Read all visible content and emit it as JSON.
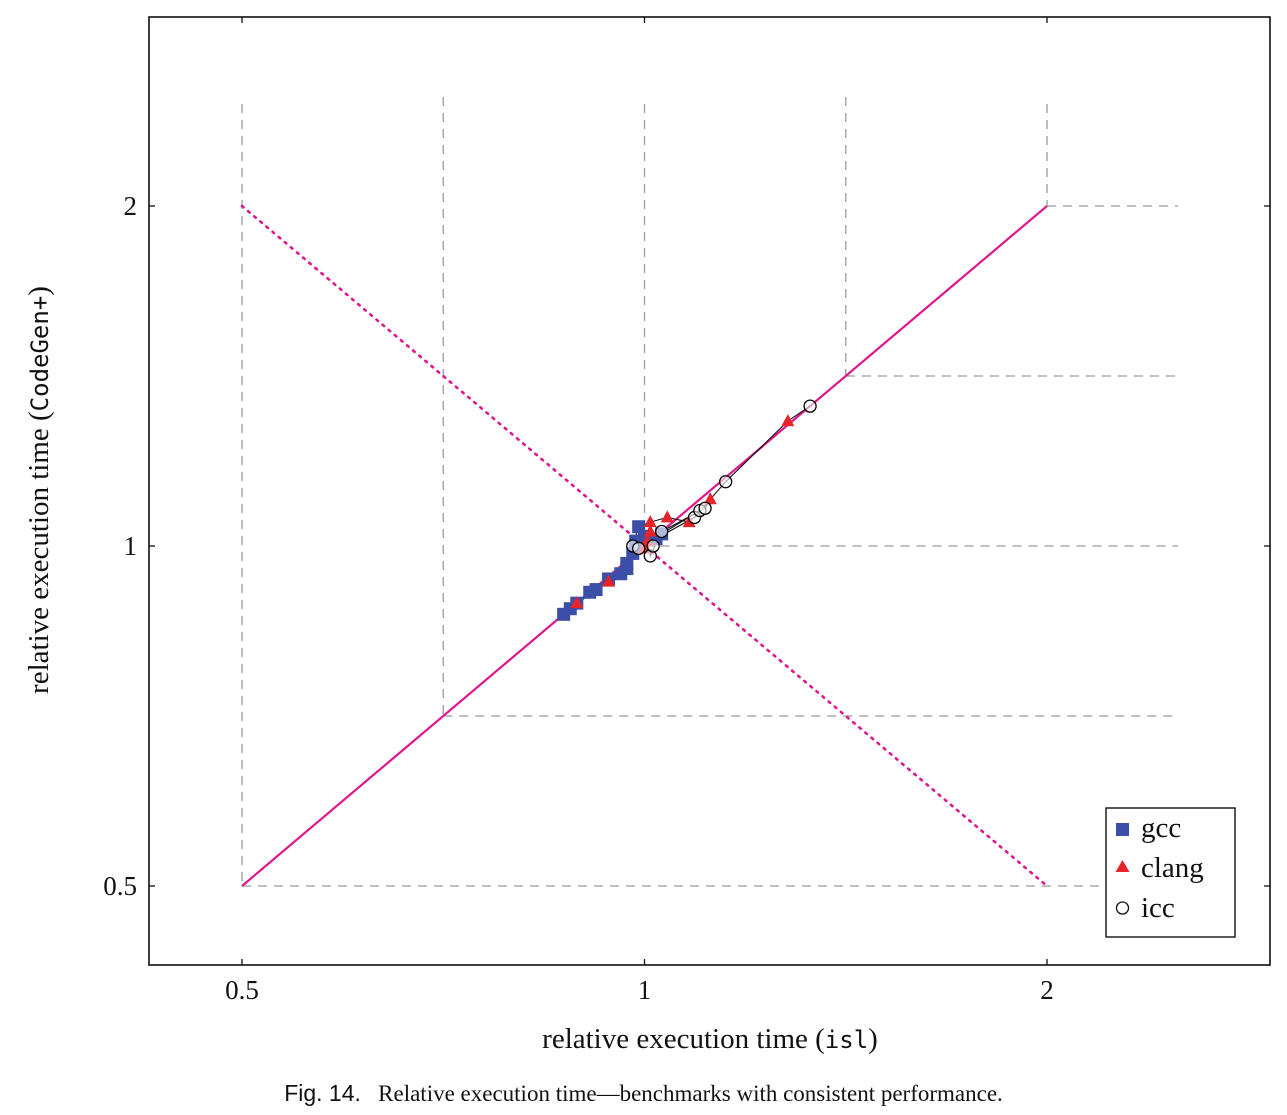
{
  "chart_data": {
    "type": "scatter",
    "xlabel_prefix": "relative execution time (",
    "xlabel_code": "isl",
    "xlabel_suffix": ")",
    "ylabel_prefix": "relative execution time (",
    "ylabel_code": "CodeGen+",
    "ylabel_suffix": ")",
    "scale": "log2",
    "xlim": [
      0.4,
      2.55
    ],
    "ylim": [
      0.42,
      2.55
    ],
    "x_ticks": [
      0.5,
      1,
      2
    ],
    "x_tick_labels": [
      "0.5",
      "1",
      "2"
    ],
    "y_ticks": [
      0.5,
      1,
      2
    ],
    "y_tick_labels": [
      "0.5",
      "1",
      "2"
    ],
    "grid": "dashed reference lines",
    "legend_position": "bottom-right",
    "reference_lines": [
      {
        "kind": "diagonal",
        "style": "solid",
        "color": "#e0168c",
        "from": [
          0.5,
          0.5
        ],
        "to": [
          2,
          2
        ]
      },
      {
        "kind": "anti-diagonal",
        "style": "dotted",
        "color": "#e0168c",
        "from": [
          0.5,
          2
        ],
        "to": [
          2,
          0.5
        ]
      }
    ],
    "series": [
      {
        "name": "gcc",
        "marker": "square",
        "color": "#3b4fa8",
        "points": [
          [
            0.87,
            0.87
          ],
          [
            0.88,
            0.88
          ],
          [
            0.89,
            0.89
          ],
          [
            0.91,
            0.91
          ],
          [
            0.92,
            0.915
          ],
          [
            0.94,
            0.935
          ],
          [
            0.96,
            0.945
          ],
          [
            0.97,
            0.955
          ],
          [
            0.97,
            0.965
          ],
          [
            0.98,
            0.985
          ],
          [
            0.985,
            1.0
          ],
          [
            0.985,
            1.01
          ],
          [
            0.99,
            1.04
          ],
          [
            1.0,
            1.02
          ],
          [
            1.02,
            1.015
          ],
          [
            1.03,
            1.025
          ]
        ]
      },
      {
        "name": "clang",
        "marker": "triangle",
        "color": "#e8232a",
        "points": [
          [
            0.89,
            0.89
          ],
          [
            0.94,
            0.93
          ],
          [
            1.0,
            0.995
          ],
          [
            1.005,
            1.01
          ],
          [
            1.01,
            1.03
          ],
          [
            1.01,
            1.05
          ],
          [
            1.04,
            1.06
          ],
          [
            1.08,
            1.05
          ],
          [
            1.12,
            1.1
          ],
          [
            1.28,
            1.29
          ]
        ]
      },
      {
        "name": "icc",
        "marker": "circle",
        "color": "#000000",
        "points": [
          [
            0.98,
            1.0
          ],
          [
            0.99,
            0.995
          ],
          [
            1.01,
            0.98
          ],
          [
            1.015,
            1.0
          ],
          [
            1.03,
            1.03
          ],
          [
            1.09,
            1.06
          ],
          [
            1.1,
            1.075
          ],
          [
            1.11,
            1.08
          ],
          [
            1.15,
            1.14
          ],
          [
            1.33,
            1.33
          ]
        ]
      }
    ],
    "connector_lines": [
      [
        [
          0.87,
          0.87
        ],
        [
          0.91,
          0.91
        ],
        [
          0.94,
          0.935
        ],
        [
          0.97,
          0.955
        ],
        [
          0.985,
          1.0
        ],
        [
          1.02,
          1.015
        ],
        [
          1.09,
          1.06
        ],
        [
          1.15,
          1.14
        ],
        [
          1.28,
          1.29
        ],
        [
          1.33,
          1.33
        ]
      ],
      [
        [
          0.88,
          0.88
        ],
        [
          0.92,
          0.915
        ],
        [
          0.96,
          0.945
        ],
        [
          0.98,
          0.985
        ],
        [
          1.0,
          0.995
        ],
        [
          1.03,
          1.025
        ],
        [
          1.1,
          1.075
        ]
      ],
      [
        [
          0.89,
          0.89
        ],
        [
          0.94,
          0.93
        ],
        [
          0.97,
          0.965
        ],
        [
          0.99,
          1.04
        ],
        [
          1.01,
          1.05
        ],
        [
          1.04,
          1.06
        ],
        [
          1.08,
          1.05
        ]
      ],
      [
        [
          0.98,
          1.0
        ],
        [
          1.005,
          1.01
        ],
        [
          1.01,
          0.98
        ],
        [
          1.03,
          1.03
        ],
        [
          1.11,
          1.08
        ],
        [
          1.12,
          1.1
        ]
      ],
      [
        [
          0.985,
          1.01
        ],
        [
          1.015,
          1.0
        ],
        [
          1.01,
          1.03
        ],
        [
          0.99,
          0.995
        ],
        [
          1.0,
          1.02
        ]
      ]
    ]
  },
  "caption": {
    "figure_label": "Fig. 14.",
    "text": "Relative execution time—benchmarks with consistent performance."
  }
}
